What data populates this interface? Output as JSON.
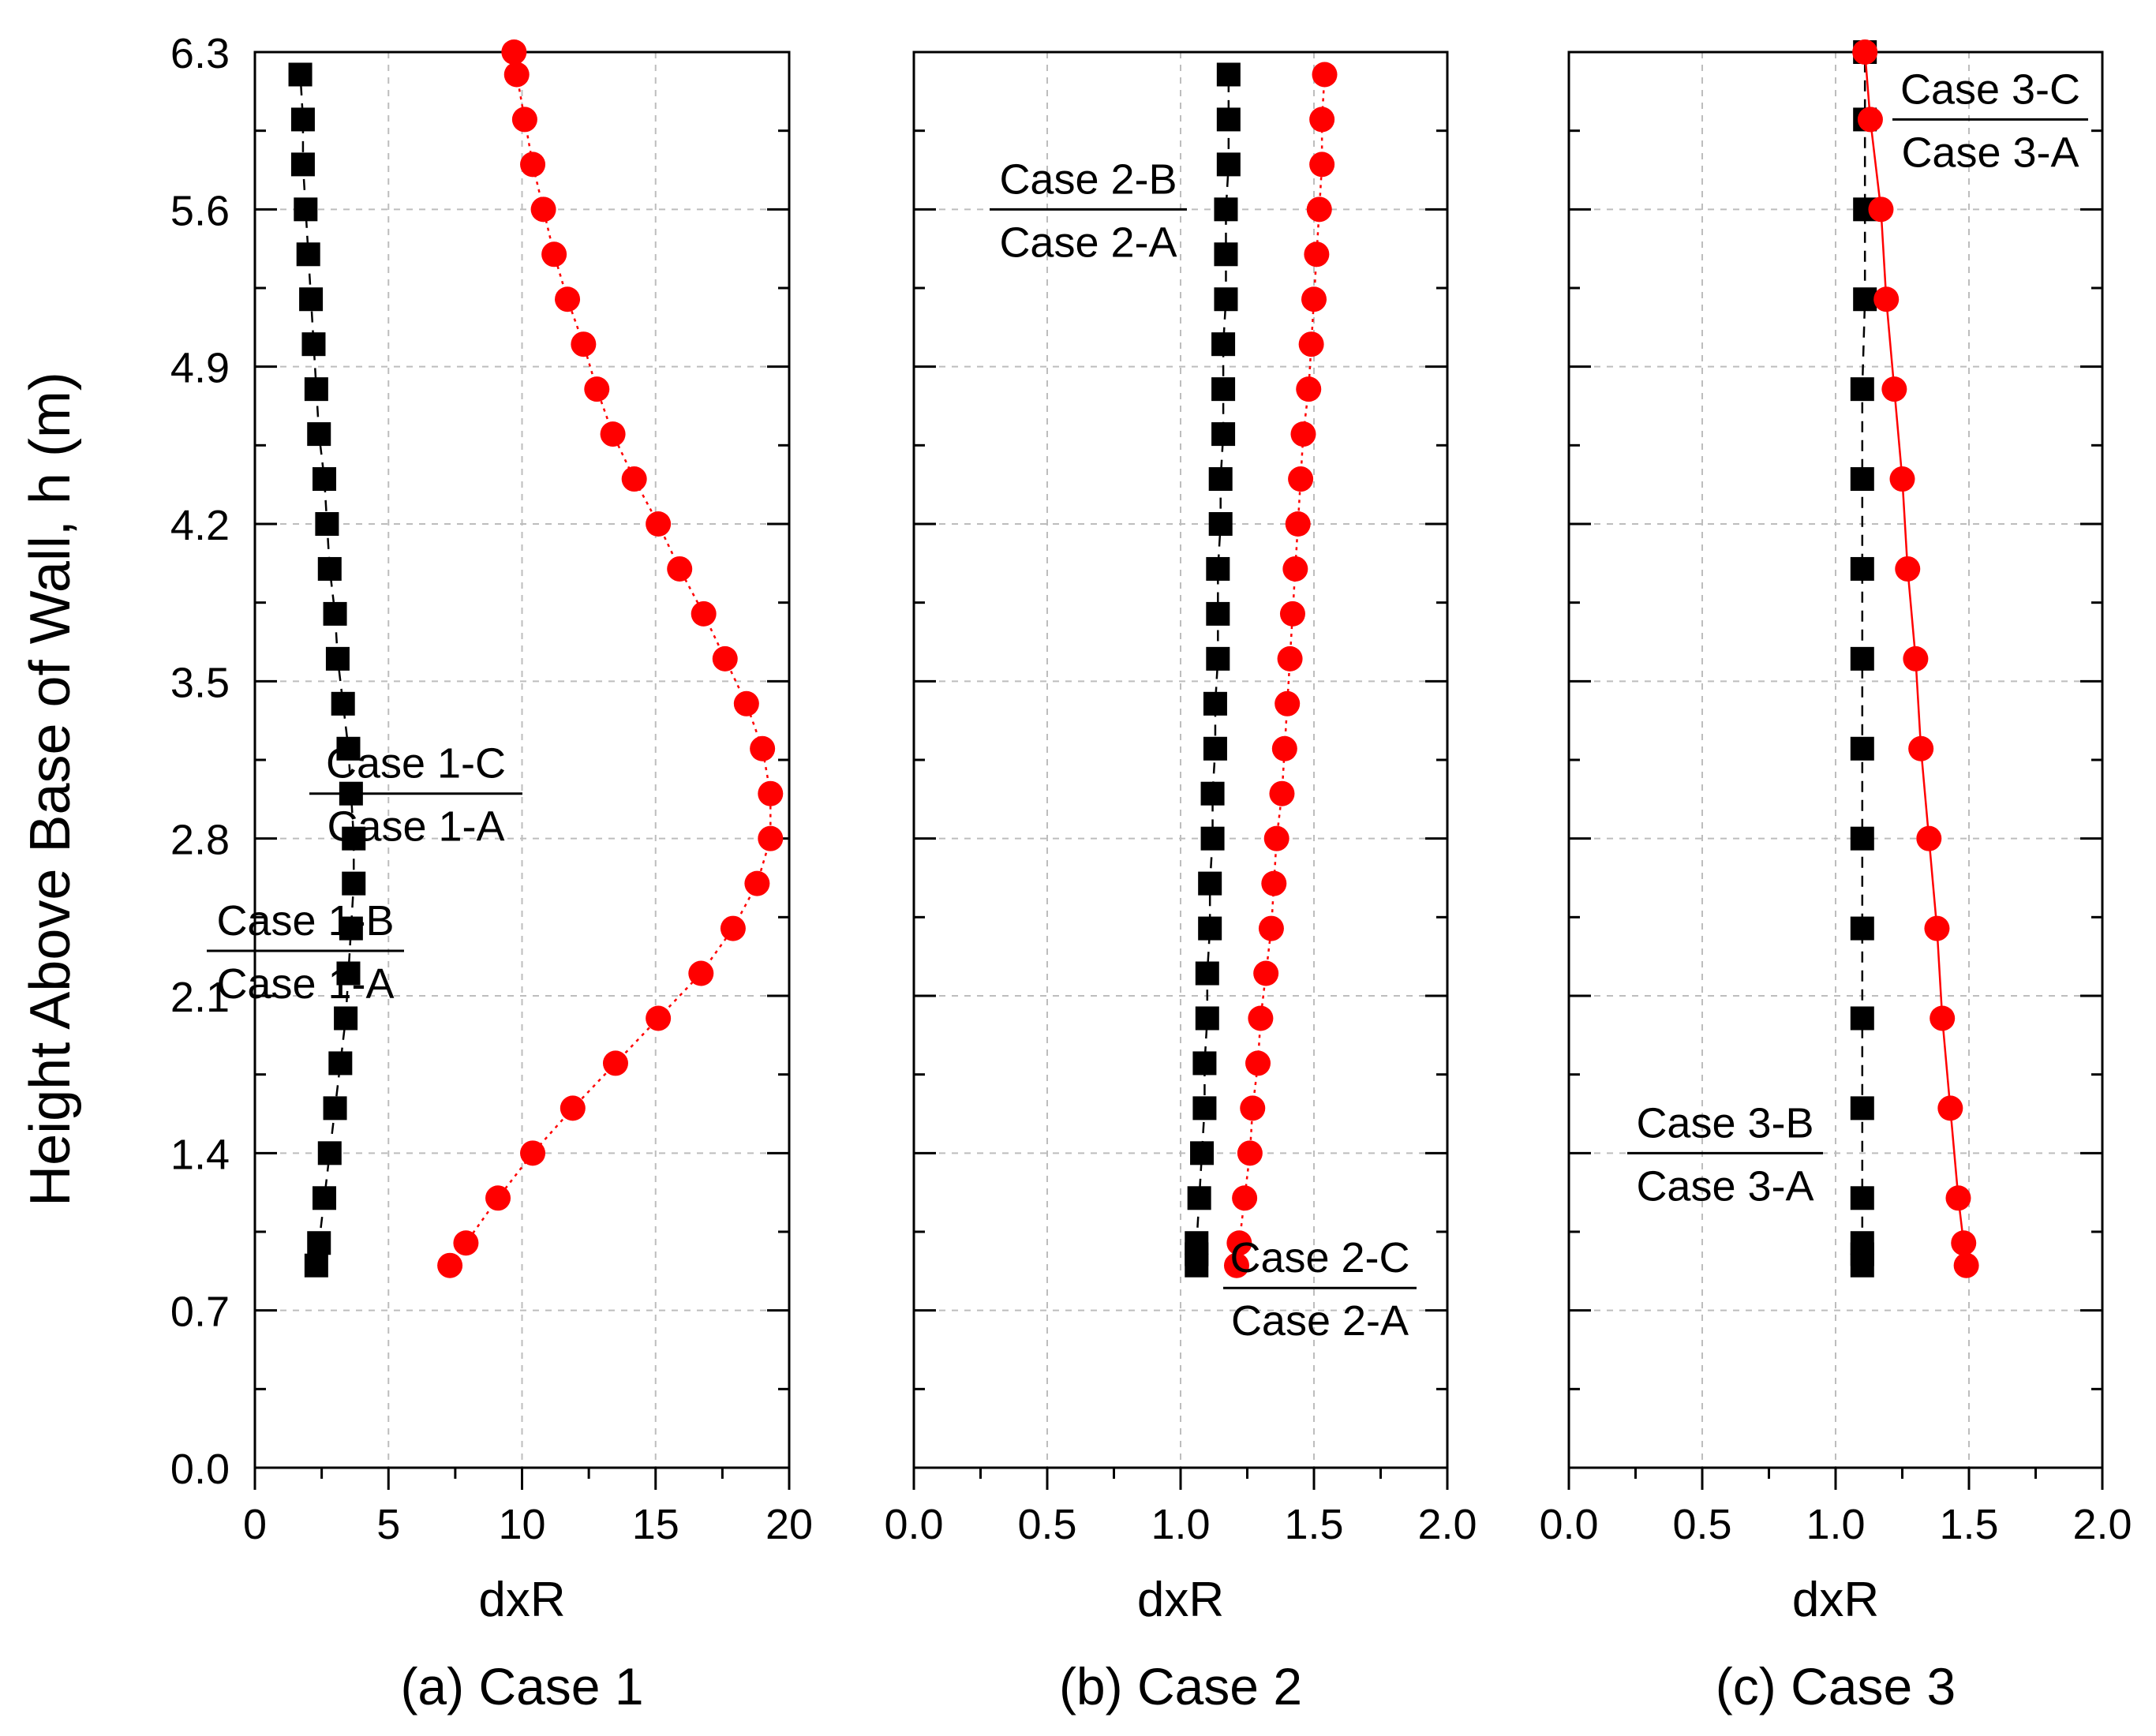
{
  "figure": {
    "y_axis_label": "Height Above Base of Wall, h (m)"
  },
  "chart_data": [
    {
      "type": "scatter",
      "caption": "(a) Case 1",
      "xlabel": "dxR",
      "ylabel": "Height Above Base of Wall, h (m)",
      "xlim": [
        0,
        20
      ],
      "ylim": [
        0,
        6.3
      ],
      "xticks": [
        0,
        5,
        10,
        15,
        20
      ],
      "xtick_labels": [
        "0",
        "5",
        "10",
        "15",
        "20"
      ],
      "yticks": [
        0,
        0.7,
        1.4,
        2.1,
        2.8,
        3.5,
        4.2,
        4.9,
        5.6,
        6.3
      ],
      "ytick_labels": [
        "0.0",
        "0.7",
        "1.4",
        "2.1",
        "2.8",
        "3.5",
        "4.2",
        "4.9",
        "5.6",
        "6.3"
      ],
      "grid": true,
      "series": [
        {
          "name": "Case 1-B / Case 1-A",
          "marker": "square",
          "color": "#000000",
          "line": "dash",
          "label_top": "Case 1-B",
          "label_bottom": "Case 1-A",
          "h": [
            0.9,
            1.0,
            1.2,
            1.4,
            1.6,
            1.8,
            2.0,
            2.2,
            2.4,
            2.6,
            2.8,
            3.0,
            3.2,
            3.4,
            3.6,
            3.8,
            4.0,
            4.2,
            4.4,
            4.6,
            4.8,
            5.0,
            5.2,
            5.4,
            5.6,
            5.8,
            6.0,
            6.2
          ],
          "x": [
            2.3,
            2.4,
            2.6,
            2.8,
            3.0,
            3.2,
            3.4,
            3.5,
            3.6,
            3.7,
            3.7,
            3.6,
            3.5,
            3.3,
            3.1,
            3.0,
            2.8,
            2.7,
            2.6,
            2.4,
            2.3,
            2.2,
            2.1,
            2.0,
            1.9,
            1.8,
            1.8,
            1.7
          ]
        },
        {
          "name": "Case 1-C / Case 1-A",
          "marker": "circle",
          "color": "#ff0000",
          "line": "dot",
          "label_top": "Case 1-C",
          "label_bottom": "Case 1-A",
          "h": [
            0.9,
            1.0,
            1.2,
            1.4,
            1.6,
            1.8,
            2.0,
            2.2,
            2.4,
            2.6,
            2.8,
            3.0,
            3.2,
            3.4,
            3.6,
            3.8,
            4.0,
            4.2,
            4.4,
            4.6,
            4.8,
            5.0,
            5.2,
            5.4,
            5.6,
            5.8,
            6.0,
            6.2,
            6.3
          ],
          "x": [
            7.3,
            7.9,
            9.1,
            10.4,
            11.9,
            13.5,
            15.1,
            16.7,
            17.9,
            18.8,
            19.3,
            19.3,
            19.0,
            18.4,
            17.6,
            16.8,
            15.9,
            15.1,
            14.2,
            13.4,
            12.8,
            12.3,
            11.7,
            11.2,
            10.8,
            10.4,
            10.1,
            9.8,
            9.7
          ]
        }
      ]
    },
    {
      "type": "scatter",
      "caption": "(b) Case 2",
      "xlabel": "dxR",
      "ylabel": "Height Above Base of Wall, h (m)",
      "xlim": [
        0,
        2.0
      ],
      "ylim": [
        0,
        6.3
      ],
      "xticks": [
        0,
        0.5,
        1.0,
        1.5,
        2.0
      ],
      "xtick_labels": [
        "0.0",
        "0.5",
        "1.0",
        "1.5",
        "2.0"
      ],
      "yticks": [
        0,
        0.7,
        1.4,
        2.1,
        2.8,
        3.5,
        4.2,
        4.9,
        5.6,
        6.3
      ],
      "grid": true,
      "series": [
        {
          "name": "Case 2-B / Case 2-A",
          "marker": "square",
          "color": "#000000",
          "line": "dash",
          "label_top": "Case 2-B",
          "label_bottom": "Case 2-A",
          "h": [
            0.9,
            0.95,
            1.0,
            1.2,
            1.4,
            1.6,
            1.8,
            2.0,
            2.2,
            2.4,
            2.6,
            2.8,
            3.0,
            3.2,
            3.4,
            3.6,
            3.8,
            4.0,
            4.2,
            4.4,
            4.6,
            4.8,
            5.0,
            5.2,
            5.4,
            5.6,
            5.8,
            6.0,
            6.2
          ],
          "x": [
            1.06,
            1.06,
            1.06,
            1.07,
            1.08,
            1.09,
            1.09,
            1.1,
            1.1,
            1.11,
            1.11,
            1.12,
            1.12,
            1.13,
            1.13,
            1.14,
            1.14,
            1.14,
            1.15,
            1.15,
            1.16,
            1.16,
            1.16,
            1.17,
            1.17,
            1.17,
            1.18,
            1.18,
            1.18
          ]
        },
        {
          "name": "Case 2-C / Case 2-A",
          "marker": "circle",
          "color": "#ff0000",
          "line": "dot",
          "label_top": "Case 2-C",
          "label_bottom": "Case 2-A",
          "h": [
            0.9,
            1.0,
            1.2,
            1.4,
            1.6,
            1.8,
            2.0,
            2.2,
            2.4,
            2.6,
            2.8,
            3.0,
            3.2,
            3.4,
            3.6,
            3.8,
            4.0,
            4.2,
            4.4,
            4.6,
            4.8,
            5.0,
            5.2,
            5.4,
            5.6,
            5.8,
            6.0,
            6.2
          ],
          "x": [
            1.21,
            1.22,
            1.24,
            1.26,
            1.27,
            1.29,
            1.3,
            1.32,
            1.34,
            1.35,
            1.36,
            1.38,
            1.39,
            1.4,
            1.41,
            1.42,
            1.43,
            1.44,
            1.45,
            1.46,
            1.48,
            1.49,
            1.5,
            1.51,
            1.52,
            1.53,
            1.53,
            1.54
          ]
        }
      ]
    },
    {
      "type": "scatter",
      "caption": "(c) Case 3",
      "xlabel": "dxR",
      "ylabel": "Height Above Base of Wall, h (m)",
      "xlim": [
        0,
        2.0
      ],
      "ylim": [
        0,
        6.3
      ],
      "xticks": [
        0,
        0.5,
        1.0,
        1.5,
        2.0
      ],
      "xtick_labels": [
        "0.0",
        "0.5",
        "1.0",
        "1.5",
        "2.0"
      ],
      "yticks": [
        0,
        0.7,
        1.4,
        2.1,
        2.8,
        3.5,
        4.2,
        4.9,
        5.6,
        6.3
      ],
      "grid": true,
      "series": [
        {
          "name": "Case 3-B / Case 3-A",
          "marker": "square",
          "color": "#000000",
          "line": "dash",
          "label_top": "Case 3-B",
          "label_bottom": "Case 3-A",
          "h": [
            0.9,
            0.95,
            1.0,
            1.2,
            1.6,
            2.0,
            2.4,
            2.8,
            3.2,
            3.6,
            4.0,
            4.4,
            4.8,
            5.2,
            5.6,
            6.0,
            6.3
          ],
          "x": [
            1.1,
            1.1,
            1.1,
            1.1,
            1.1,
            1.1,
            1.1,
            1.1,
            1.1,
            1.1,
            1.1,
            1.1,
            1.1,
            1.11,
            1.11,
            1.11,
            1.11
          ]
        },
        {
          "name": "Case 3-C / Case 3-A",
          "marker": "circle",
          "color": "#ff0000",
          "line": "solid",
          "label_top": "Case 3-C",
          "label_bottom": "Case 3-A",
          "h": [
            0.9,
            1.0,
            1.2,
            1.6,
            2.0,
            2.4,
            2.8,
            3.2,
            3.6,
            4.0,
            4.4,
            4.8,
            5.2,
            5.6,
            6.0,
            6.3
          ],
          "x": [
            1.49,
            1.48,
            1.46,
            1.43,
            1.4,
            1.38,
            1.35,
            1.32,
            1.3,
            1.27,
            1.25,
            1.22,
            1.19,
            1.17,
            1.13,
            1.11
          ]
        }
      ]
    }
  ]
}
